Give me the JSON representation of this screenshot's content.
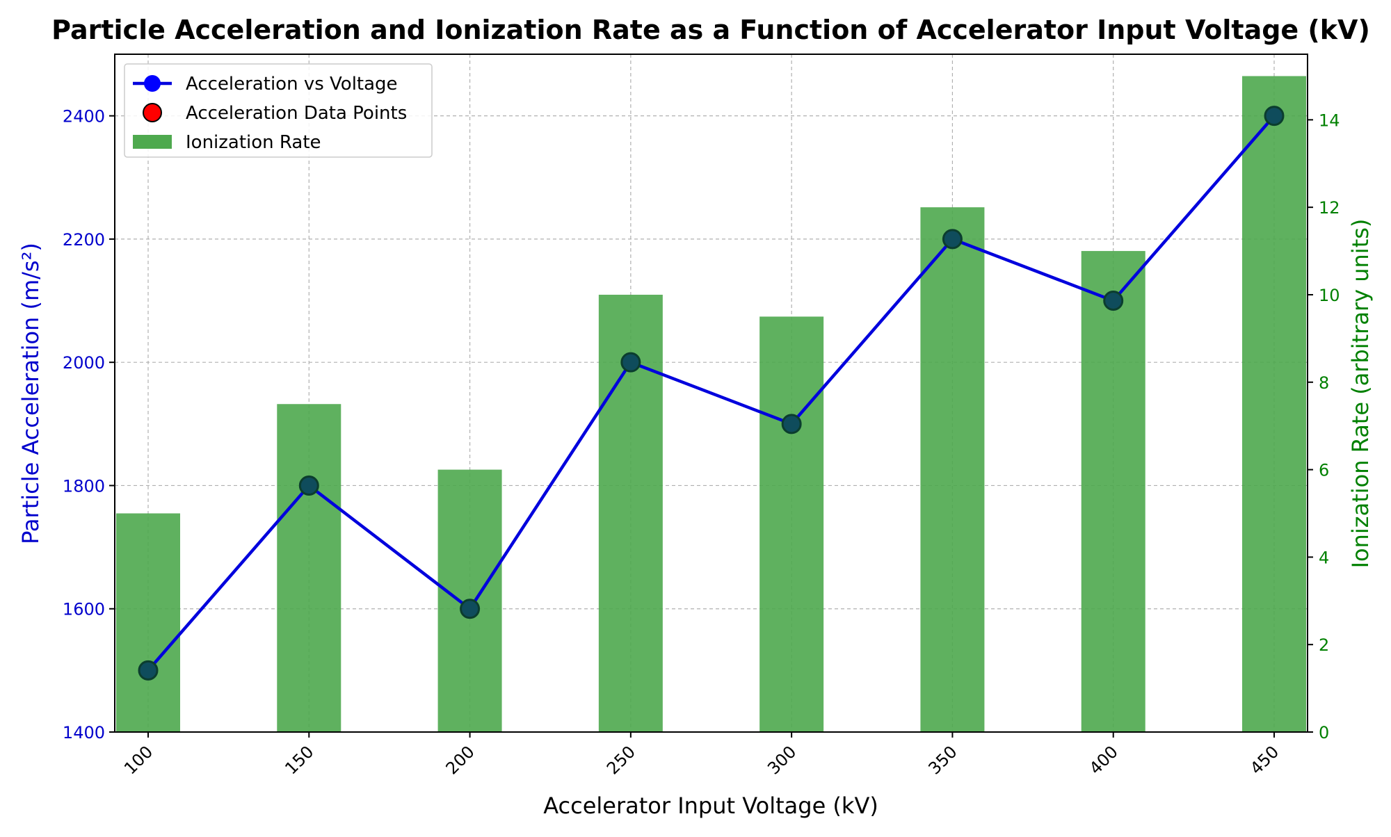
{
  "chart_data": {
    "type": "bar+line",
    "title": "Particle Acceleration and Ionization Rate as a Function of Accelerator Input Voltage (kV)",
    "xlabel": "Accelerator Input Voltage (kV)",
    "ylabel_left": "Particle Acceleration (m/s²)",
    "ylabel_right": "Ionization Rate (arbitrary units)",
    "x": [
      100,
      150,
      200,
      250,
      300,
      350,
      400,
      450
    ],
    "x_tick_labels": [
      "100",
      "150",
      "200",
      "250",
      "300",
      "350",
      "400",
      "450"
    ],
    "ylim_left": [
      1400,
      2500
    ],
    "yticks_left": [
      1400,
      1600,
      1800,
      2000,
      2200,
      2400
    ],
    "ylim_right": [
      0,
      15.5
    ],
    "yticks_right": [
      0,
      2,
      4,
      6,
      8,
      10,
      12,
      14
    ],
    "grid": true,
    "legend_position": "top-left",
    "series": [
      {
        "name": "Acceleration vs Voltage",
        "kind": "line",
        "axis": "left",
        "color": "#0000dd",
        "values": [
          1500,
          1800,
          1600,
          2000,
          1900,
          2200,
          2100,
          2400
        ]
      },
      {
        "name": "Acceleration Data Points",
        "kind": "scatter",
        "axis": "left",
        "color": "#ff0000",
        "edge_color": "#000000",
        "values": [
          1500,
          1800,
          1600,
          2000,
          1900,
          2200,
          2100,
          2400
        ]
      },
      {
        "name": "Ionization Rate",
        "kind": "bar",
        "axis": "right",
        "color": "#4da64d",
        "values": [
          5,
          7.5,
          6,
          10,
          9.5,
          12,
          11,
          15
        ]
      }
    ],
    "colors": {
      "left_axis": "#0000cc",
      "right_axis": "#008000",
      "bar": "#4ea94e",
      "line": "#0000dd",
      "point_fill": "#0f4c5c",
      "point_edge": "#0b3d2e"
    }
  }
}
